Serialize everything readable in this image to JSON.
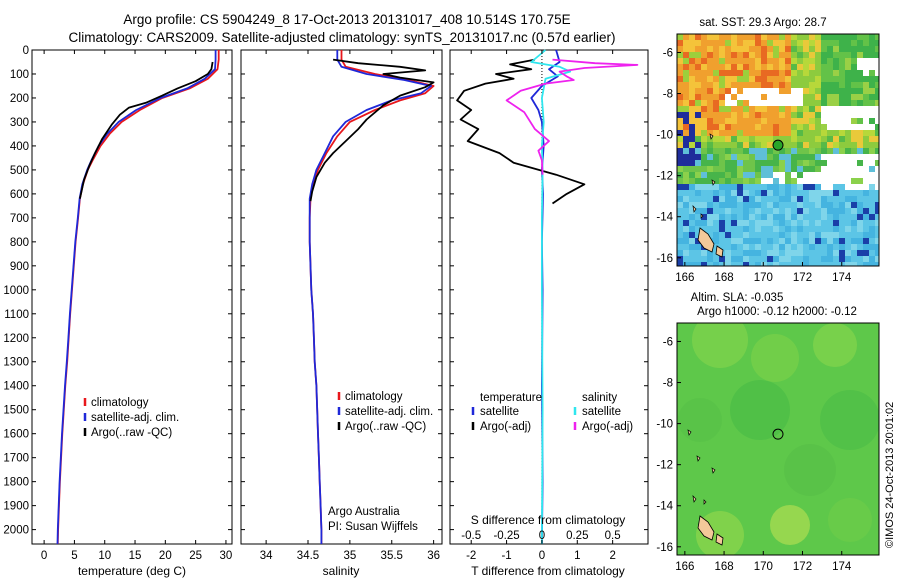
{
  "header": {
    "line1": "Argo profile: CS 5904249_8 17-Oct-2013 20131017_408 10.514S 170.75E",
    "line2": "Climatology: CARS2009. Satellite-adjusted climatology: synTS_20131017.nc (0.57d earlier)"
  },
  "colors": {
    "climatology": "#e8171c",
    "satellite": "#1f28d8",
    "argo": "#000000",
    "sal_satellite": "#2fe6ee",
    "sal_argo": "#ee22ee"
  },
  "depth_axis": {
    "ticks": [
      0,
      100,
      200,
      300,
      400,
      500,
      600,
      700,
      800,
      900,
      1000,
      1100,
      1200,
      1300,
      1400,
      1500,
      1600,
      1700,
      1800,
      1900,
      2000
    ],
    "ylim": [
      0,
      2060
    ]
  },
  "chart_data": [
    {
      "type": "line",
      "xlabel": "temperature (deg C)",
      "xticks": [
        0,
        5,
        10,
        15,
        20,
        25,
        30
      ],
      "xlim": [
        -2,
        31
      ],
      "legend": [
        "climatology",
        "satellite-adj. clim.",
        "Argo(..raw -QC)"
      ],
      "series": [
        {
          "name": "climatology",
          "color": "climatology",
          "points": [
            [
              28.8,
              0
            ],
            [
              28.8,
              40
            ],
            [
              28.6,
              80
            ],
            [
              27.0,
              120
            ],
            [
              24.0,
              160
            ],
            [
              19.5,
              200
            ],
            [
              15.8,
              250
            ],
            [
              12.8,
              300
            ],
            [
              10.8,
              350
            ],
            [
              9.3,
              400
            ],
            [
              8.0,
              460
            ],
            [
              7.2,
              500
            ],
            [
              6.4,
              560
            ],
            [
              5.9,
              620
            ],
            [
              5.6,
              700
            ],
            [
              5.2,
              800
            ],
            [
              4.9,
              900
            ],
            [
              4.6,
              1000
            ],
            [
              4.3,
              1100
            ],
            [
              4.05,
              1200
            ],
            [
              3.8,
              1300
            ],
            [
              3.5,
              1400
            ],
            [
              3.25,
              1500
            ],
            [
              3.0,
              1600
            ],
            [
              2.8,
              1700
            ],
            [
              2.6,
              1800
            ],
            [
              2.45,
              1900
            ],
            [
              2.3,
              2000
            ],
            [
              2.25,
              2060
            ]
          ]
        },
        {
          "name": "satellite-adj. clim.",
          "color": "satellite",
          "points": [
            [
              28.3,
              0
            ],
            [
              28.3,
              40
            ],
            [
              28.2,
              80
            ],
            [
              26.5,
              120
            ],
            [
              23.6,
              160
            ],
            [
              19.2,
              200
            ],
            [
              15.2,
              250
            ],
            [
              12.3,
              300
            ],
            [
              10.4,
              350
            ],
            [
              9.0,
              400
            ],
            [
              7.8,
              460
            ],
            [
              7.1,
              500
            ],
            [
              6.3,
              560
            ],
            [
              5.85,
              620
            ],
            [
              5.55,
              700
            ],
            [
              5.15,
              800
            ],
            [
              4.85,
              900
            ],
            [
              4.55,
              1000
            ],
            [
              4.25,
              1100
            ],
            [
              4.0,
              1200
            ],
            [
              3.75,
              1300
            ],
            [
              3.45,
              1400
            ],
            [
              3.2,
              1500
            ],
            [
              2.95,
              1600
            ],
            [
              2.75,
              1700
            ],
            [
              2.55,
              1800
            ],
            [
              2.4,
              1900
            ],
            [
              2.25,
              2000
            ],
            [
              2.2,
              2060
            ]
          ]
        },
        {
          "name": "Argo(..raw -QC)",
          "color": "argo",
          "points": [
            [
              27.8,
              50
            ],
            [
              27.6,
              80
            ],
            [
              27.0,
              100
            ],
            [
              25.0,
              130
            ],
            [
              22.0,
              160
            ],
            [
              19.5,
              190
            ],
            [
              16.8,
              220
            ],
            [
              14.0,
              240
            ],
            [
              12.5,
              270
            ],
            [
              11.2,
              310
            ],
            [
              9.6,
              370
            ],
            [
              8.4,
              430
            ],
            [
              7.5,
              480
            ],
            [
              6.6,
              540
            ],
            [
              5.9,
              620
            ]
          ]
        }
      ]
    },
    {
      "type": "line",
      "xlabel": "salinity",
      "xticks": [
        34,
        34.5,
        35,
        35.5,
        36
      ],
      "xlim": [
        33.7,
        36.1
      ],
      "legend": [
        "climatology",
        "satellite-adj. clim.",
        "Argo(..raw -QC)"
      ],
      "annotations": [
        "Argo Australia",
        "PI: Susan Wijffels"
      ],
      "series": [
        {
          "name": "climatology",
          "color": "climatology",
          "points": [
            [
              34.9,
              0
            ],
            [
              34.9,
              40
            ],
            [
              34.95,
              70
            ],
            [
              35.3,
              100
            ],
            [
              35.7,
              125
            ],
            [
              36.0,
              150
            ],
            [
              35.9,
              180
            ],
            [
              35.6,
              210
            ],
            [
              35.3,
              250
            ],
            [
              35.0,
              300
            ],
            [
              34.85,
              360
            ],
            [
              34.72,
              430
            ],
            [
              34.62,
              500
            ],
            [
              34.56,
              560
            ],
            [
              34.53,
              620
            ],
            [
              34.52,
              700
            ],
            [
              34.52,
              800
            ],
            [
              34.53,
              900
            ],
            [
              34.54,
              1000
            ],
            [
              34.56,
              1100
            ],
            [
              34.57,
              1200
            ],
            [
              34.58,
              1300
            ],
            [
              34.6,
              1400
            ],
            [
              34.61,
              1500
            ],
            [
              34.62,
              1600
            ],
            [
              34.63,
              1700
            ],
            [
              34.64,
              1800
            ],
            [
              34.65,
              1900
            ],
            [
              34.66,
              2000
            ],
            [
              34.66,
              2060
            ]
          ]
        },
        {
          "name": "satellite-adj. clim.",
          "color": "satellite",
          "points": [
            [
              34.85,
              0
            ],
            [
              34.85,
              40
            ],
            [
              34.9,
              70
            ],
            [
              35.2,
              100
            ],
            [
              35.65,
              125
            ],
            [
              35.97,
              150
            ],
            [
              35.85,
              180
            ],
            [
              35.5,
              210
            ],
            [
              35.2,
              250
            ],
            [
              34.95,
              300
            ],
            [
              34.8,
              360
            ],
            [
              34.7,
              430
            ],
            [
              34.6,
              500
            ],
            [
              34.55,
              560
            ],
            [
              34.52,
              620
            ],
            [
              34.52,
              700
            ],
            [
              34.52,
              800
            ],
            [
              34.53,
              900
            ],
            [
              34.54,
              1000
            ],
            [
              34.56,
              1100
            ],
            [
              34.57,
              1200
            ],
            [
              34.58,
              1300
            ],
            [
              34.6,
              1400
            ],
            [
              34.61,
              1500
            ],
            [
              34.62,
              1600
            ],
            [
              34.63,
              1700
            ],
            [
              34.64,
              1800
            ],
            [
              34.65,
              1900
            ],
            [
              34.66,
              2000
            ],
            [
              34.66,
              2060
            ]
          ]
        },
        {
          "name": "Argo(..raw -QC)",
          "color": "argo",
          "points": [
            [
              34.8,
              40
            ],
            [
              35.1,
              55
            ],
            [
              35.6,
              70
            ],
            [
              35.9,
              85
            ],
            [
              35.4,
              100
            ],
            [
              35.6,
              115
            ],
            [
              36.0,
              135
            ],
            [
              35.9,
              155
            ],
            [
              35.6,
              190
            ],
            [
              35.4,
              230
            ],
            [
              35.2,
              290
            ],
            [
              35.1,
              330
            ],
            [
              34.95,
              380
            ],
            [
              34.8,
              430
            ],
            [
              34.7,
              470
            ],
            [
              34.6,
              530
            ],
            [
              34.55,
              590
            ],
            [
              34.53,
              630
            ]
          ]
        }
      ]
    },
    {
      "type": "line",
      "xlabel": "T difference from climatology",
      "xlabel2": "S difference from climatology",
      "xticks": [
        -2,
        -1,
        0,
        1,
        2
      ],
      "xticks2": [
        "-0.5",
        "-0.25",
        "0",
        "0.25",
        "0.5"
      ],
      "xlim": [
        -2.6,
        3.0
      ],
      "legend_temperature": [
        "temperature",
        "satellite",
        "Argo(-adj)"
      ],
      "legend_salinity": [
        "salinity",
        "satellite",
        "Argo(-adj)"
      ],
      "series": [
        {
          "name": "satellite",
          "color": "satellite",
          "points": [
            [
              0.4,
              0
            ],
            [
              0.5,
              50
            ],
            [
              0.2,
              80
            ],
            [
              0.45,
              110
            ],
            [
              0.0,
              150
            ],
            [
              -0.3,
              200
            ],
            [
              -0.1,
              250
            ],
            [
              0.0,
              300
            ],
            [
              0.05,
              400
            ],
            [
              0.0,
              500
            ],
            [
              0.03,
              600
            ],
            [
              0.0,
              800
            ],
            [
              0.02,
              1000
            ],
            [
              0.0,
              1400
            ],
            [
              0.02,
              1800
            ],
            [
              0.0,
              2060
            ]
          ]
        },
        {
          "name": "Argo(-adj)",
          "color": "argo",
          "points": [
            [
              -0.2,
              40
            ],
            [
              -0.9,
              60
            ],
            [
              -0.3,
              80
            ],
            [
              -1.3,
              100
            ],
            [
              -0.8,
              120
            ],
            [
              -1.6,
              140
            ],
            [
              -2.2,
              170
            ],
            [
              -2.4,
              210
            ],
            [
              -2.0,
              250
            ],
            [
              -2.3,
              290
            ],
            [
              -1.8,
              330
            ],
            [
              -2.1,
              380
            ],
            [
              -1.2,
              430
            ],
            [
              -0.8,
              470
            ],
            [
              0.4,
              520
            ],
            [
              1.2,
              560
            ],
            [
              0.7,
              600
            ],
            [
              0.3,
              640
            ]
          ]
        },
        {
          "name": "salinity satellite",
          "color": "sal_satellite",
          "points": [
            [
              0.1,
              0
            ],
            [
              -0.3,
              50
            ],
            [
              0.5,
              70
            ],
            [
              0.8,
              90
            ],
            [
              0.1,
              120
            ],
            [
              0.0,
              200
            ],
            [
              0.05,
              300
            ],
            [
              0.0,
              400
            ],
            [
              0.02,
              500
            ],
            [
              0.0,
              700
            ],
            [
              0.0,
              1000
            ],
            [
              0.02,
              1500
            ],
            [
              0.0,
              2060
            ]
          ]
        },
        {
          "name": "salinity Argo(-adj)",
          "color": "sal_argo",
          "points": [
            [
              0.3,
              40
            ],
            [
              1.5,
              55
            ],
            [
              2.7,
              62
            ],
            [
              1.2,
              75
            ],
            [
              0.5,
              90
            ],
            [
              0.7,
              110
            ],
            [
              0.9,
              125
            ],
            [
              0.1,
              140
            ],
            [
              -0.6,
              170
            ],
            [
              -1.0,
              210
            ],
            [
              -0.5,
              260
            ],
            [
              -0.2,
              330
            ],
            [
              0.2,
              380
            ],
            [
              -0.1,
              420
            ],
            [
              0.0,
              460
            ],
            [
              0.02,
              520
            ]
          ]
        }
      ]
    },
    {
      "type": "heatmap",
      "title": "sat. SST: 29.3 Argo: 28.7",
      "xticks": [
        166,
        168,
        170,
        172,
        174
      ],
      "yticks": [
        -6,
        -8,
        -10,
        -12,
        -14,
        -16
      ],
      "xlim": [
        165.6,
        175.9
      ],
      "ylim": [
        -16.4,
        -5.1
      ],
      "marker": {
        "lon": 170.75,
        "lat": -10.514
      }
    },
    {
      "type": "heatmap",
      "title": "Altim. SLA: -0.035",
      "subtitle": "Argo h1000: -0.12 h2000: -0.12",
      "xticks": [
        166,
        168,
        170,
        172,
        174
      ],
      "yticks": [
        -6,
        -8,
        -10,
        -12,
        -14,
        -16
      ],
      "xlim": [
        165.6,
        175.9
      ],
      "ylim": [
        -16.4,
        -5.1
      ],
      "marker": {
        "lon": 170.75,
        "lat": -10.514
      }
    }
  ],
  "footer": {
    "stamp": "©IMOS 24-Oct-2013 20:01:02"
  }
}
